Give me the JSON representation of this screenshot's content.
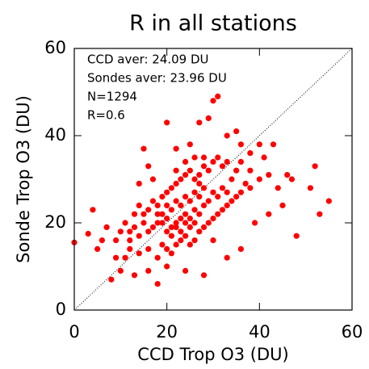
{
  "chart_data": {
    "type": "scatter",
    "title": "R in all stations",
    "xlabel": "CCD Trop O3 (DU)",
    "ylabel": "Sonde Trop O3 (DU)",
    "annotations": [
      "CCD aver: 24.09  DU",
      "Sondes aver: 23.96  DU",
      "N=1294",
      "R=0.6"
    ],
    "color": "#ff0000",
    "xlim": [
      0,
      60
    ],
    "ylim": [
      0,
      60
    ],
    "xticks": [
      0,
      20,
      40,
      60
    ],
    "yticks": [
      0,
      20,
      40,
      60
    ],
    "x": [
      0,
      3,
      4,
      5,
      8,
      9,
      10,
      12,
      14,
      15,
      16,
      18,
      20,
      22,
      25,
      27,
      29,
      30,
      31,
      33,
      35,
      36,
      38,
      40,
      41,
      42,
      44,
      46,
      47,
      48,
      52,
      53,
      55,
      51,
      43,
      42,
      45,
      39,
      36,
      33,
      28,
      24,
      20,
      16,
      13,
      11,
      30,
      7,
      6,
      17,
      18,
      19,
      20,
      21,
      22,
      23,
      24,
      25,
      26,
      27,
      20,
      21,
      22,
      23,
      24,
      25,
      26,
      27,
      28,
      29,
      30,
      31,
      32,
      33,
      34,
      16,
      17,
      15,
      14,
      13,
      12,
      18,
      19,
      20,
      21,
      22,
      23,
      24,
      25,
      26,
      27,
      28,
      29,
      30,
      31,
      32,
      19,
      20,
      21,
      22,
      23,
      24,
      25,
      26,
      27,
      28,
      29,
      30,
      31,
      32,
      33,
      34,
      35,
      36,
      37,
      38,
      17,
      16,
      15,
      14,
      13,
      11,
      10,
      9,
      12,
      14,
      16,
      18,
      28,
      27,
      26,
      24,
      22,
      20,
      18,
      21,
      23,
      25,
      19,
      35,
      33,
      36,
      38,
      40,
      28,
      26,
      24,
      22
    ],
    "values": [
      15.5,
      17.5,
      23,
      14,
      7,
      12,
      9,
      16,
      29,
      37,
      33,
      6,
      43,
      37,
      38,
      43,
      44,
      48,
      49,
      40,
      41,
      38,
      36,
      38,
      35,
      31,
      28,
      31,
      30,
      17,
      33,
      22,
      25,
      28,
      38,
      22,
      24,
      20,
      14,
      12,
      8,
      9,
      10,
      9,
      8,
      12,
      16,
      19,
      16,
      30,
      20,
      22,
      21,
      23,
      20,
      24,
      22,
      25,
      23,
      26,
      18,
      17,
      19,
      18,
      20,
      21,
      20,
      22,
      24,
      25,
      27,
      26,
      28,
      27,
      30,
      18,
      19,
      20,
      17,
      19,
      18,
      24,
      26,
      27,
      28,
      29,
      30,
      31,
      32,
      30,
      31,
      33,
      32,
      34,
      35,
      33,
      15,
      14,
      13,
      15,
      16,
      17,
      15,
      16,
      18,
      19,
      20,
      21,
      22,
      23,
      24,
      25,
      26,
      27,
      29,
      28,
      25,
      23,
      22,
      24,
      22,
      20,
      18,
      16,
      14,
      13,
      14,
      12,
      28,
      29,
      27,
      26,
      25,
      24,
      22,
      19,
      21,
      19,
      20,
      32,
      34,
      34,
      32,
      30,
      35,
      35,
      34,
      32
    ]
  }
}
